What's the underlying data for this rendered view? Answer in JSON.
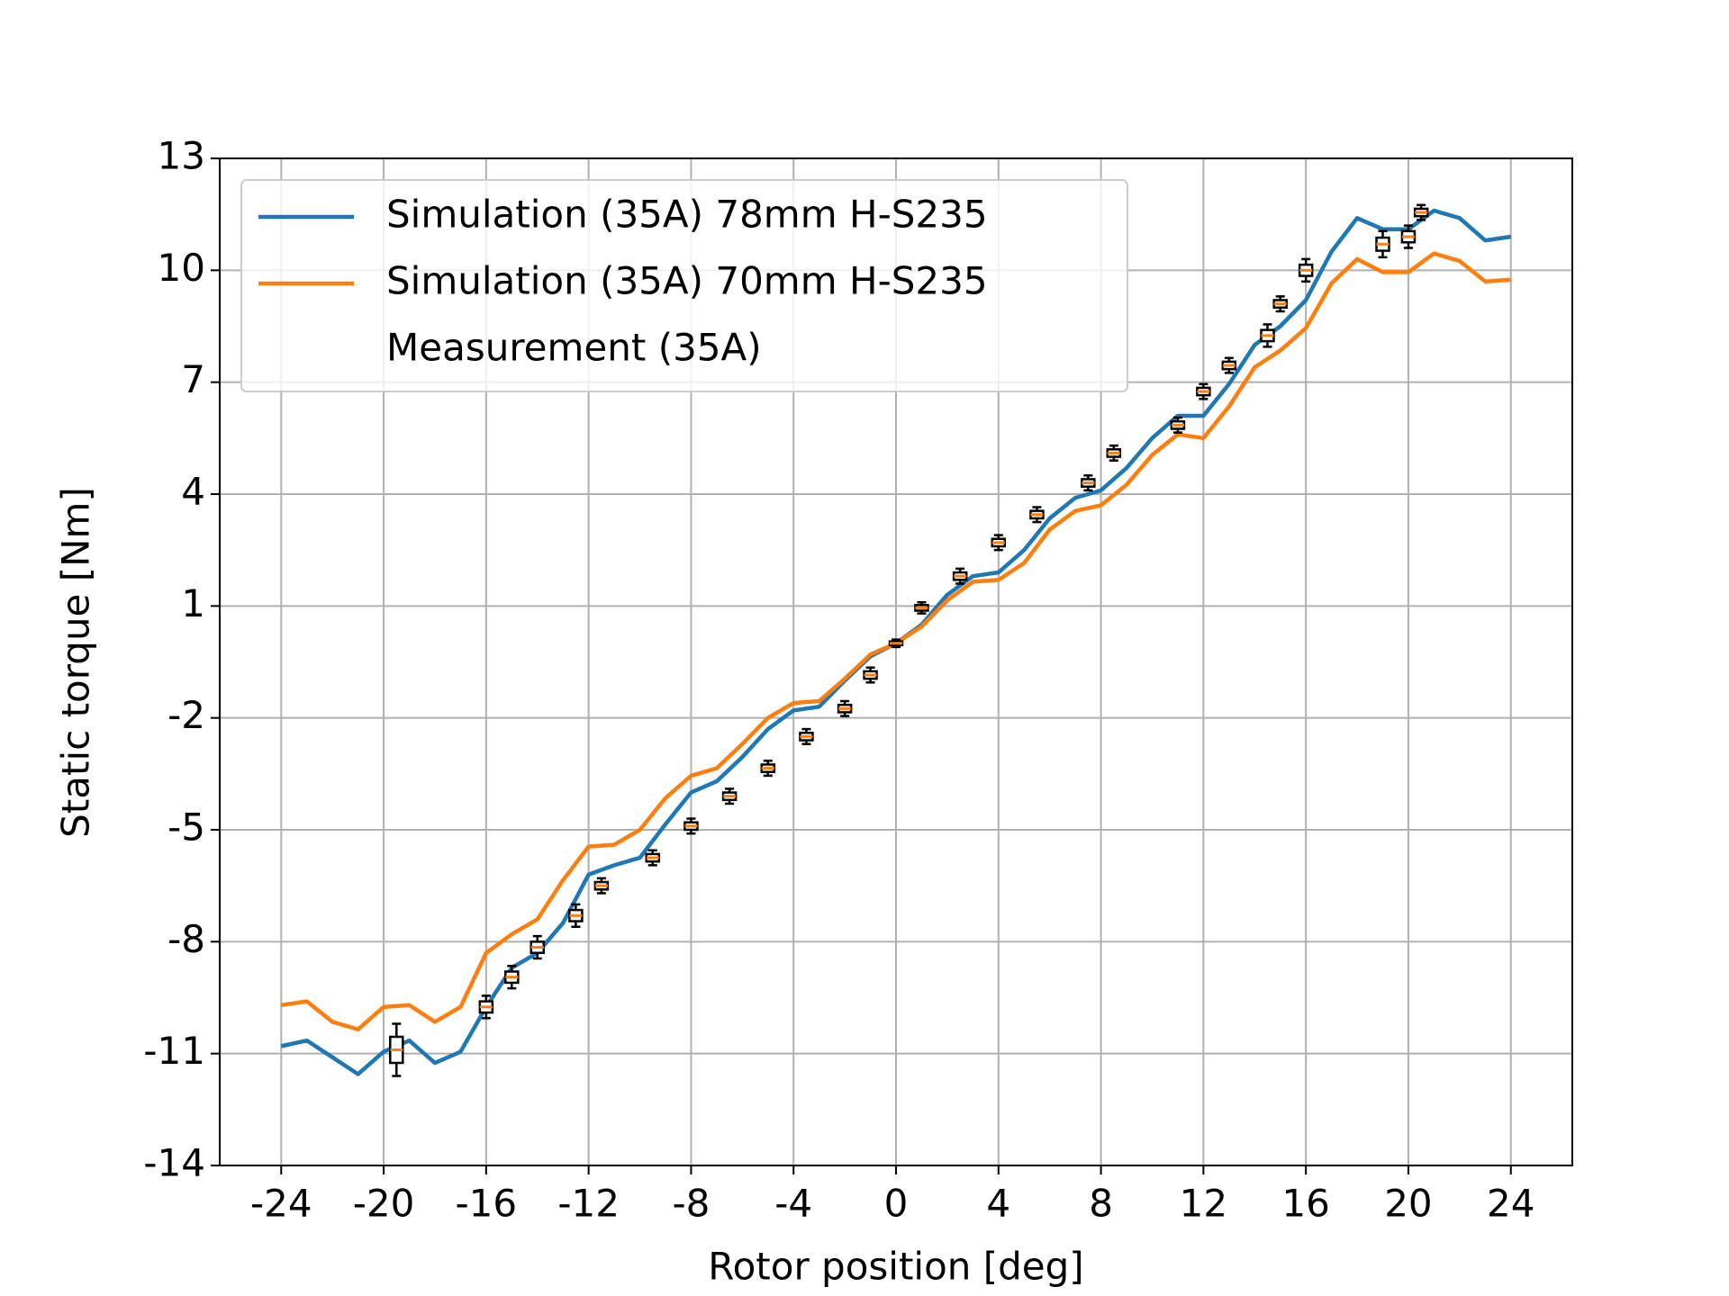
{
  "chart_data": {
    "type": "line",
    "xlabel": "Rotor position [deg]",
    "ylabel": "Static torque [Nm]",
    "xlim": [
      -26.4,
      26.4
    ],
    "xticks": [
      -24,
      -20,
      -16,
      -12,
      -8,
      -4,
      0,
      4,
      8,
      12,
      16,
      20,
      24
    ],
    "ylim": [
      -14,
      13
    ],
    "yticks": [
      -14,
      -11,
      -8,
      -5,
      -2,
      1,
      4,
      7,
      10,
      13
    ],
    "grid": true,
    "legend": "upper left",
    "series": [
      {
        "name": "Simulation (35A) 78mm H-S235",
        "color": "#1f77b4",
        "x": [
          -24,
          -23,
          -22,
          -21,
          -20,
          -19,
          -18,
          -17,
          -16,
          -15,
          -14,
          -13,
          -12,
          -11,
          -10,
          -9,
          -8,
          -7,
          -6,
          -5,
          -4,
          -3,
          -2,
          -1,
          0,
          1,
          2,
          3,
          4,
          5,
          6,
          7,
          8,
          9,
          10,
          11,
          12,
          13,
          14,
          15,
          16,
          17,
          18,
          19,
          20,
          21,
          22,
          23,
          24
        ],
        "values": [
          -10.8,
          -10.65,
          -11.1,
          -11.55,
          -10.95,
          -10.65,
          -11.25,
          -10.95,
          -9.75,
          -8.7,
          -8.3,
          -7.5,
          -6.2,
          -5.95,
          -5.75,
          -4.85,
          -4.0,
          -3.7,
          -3.05,
          -2.3,
          -1.8,
          -1.7,
          -1.0,
          -0.35,
          0,
          0.5,
          1.3,
          1.8,
          1.9,
          2.5,
          3.35,
          3.9,
          4.1,
          4.7,
          5.5,
          6.1,
          6.1,
          6.95,
          8.0,
          8.5,
          9.2,
          10.5,
          11.4,
          11.1,
          11.1,
          11.6,
          11.4,
          10.8,
          10.9
        ]
      },
      {
        "name": "Simulation (35A) 70mm H-S235",
        "color": "#ff7f0e",
        "x": [
          -24,
          -23,
          -22,
          -21,
          -20,
          -19,
          -18,
          -17,
          -16,
          -15,
          -14,
          -13,
          -12,
          -11,
          -10,
          -9,
          -8,
          -7,
          -6,
          -5,
          -4,
          -3,
          -2,
          -1,
          0,
          1,
          2,
          3,
          4,
          5,
          6,
          7,
          8,
          9,
          10,
          11,
          12,
          13,
          14,
          15,
          16,
          17,
          18,
          19,
          20,
          21,
          22,
          23,
          24
        ],
        "values": [
          -9.7,
          -9.6,
          -10.15,
          -10.35,
          -9.75,
          -9.7,
          -10.15,
          -9.75,
          -8.3,
          -7.8,
          -7.4,
          -6.35,
          -5.45,
          -5.4,
          -5.0,
          -4.15,
          -3.55,
          -3.35,
          -2.7,
          -2.0,
          -1.6,
          -1.55,
          -0.95,
          -0.3,
          0,
          0.45,
          1.15,
          1.65,
          1.7,
          2.15,
          3.05,
          3.55,
          3.7,
          4.25,
          5.05,
          5.6,
          5.5,
          6.35,
          7.4,
          7.85,
          8.45,
          9.65,
          10.3,
          9.95,
          9.95,
          10.45,
          10.25,
          9.7,
          9.75
        ]
      },
      {
        "name": "Measurement (35A)",
        "color": "#ff7f0e",
        "marker": "box",
        "x": [
          -19.5,
          -16,
          -15,
          -14,
          -12.5,
          -11.5,
          -9.5,
          -8,
          -6.5,
          -5,
          -3.5,
          -2,
          -1,
          0,
          1,
          2.5,
          4,
          5.5,
          7.5,
          8.5,
          11,
          12,
          13,
          14.5,
          15,
          16,
          19,
          20,
          20.5
        ],
        "values": [
          -10.9,
          -9.75,
          -8.95,
          -8.15,
          -7.3,
          -6.5,
          -5.75,
          -4.9,
          -4.1,
          -3.35,
          -2.5,
          -1.75,
          -0.85,
          0,
          0.95,
          1.8,
          2.7,
          3.45,
          4.3,
          5.1,
          5.85,
          6.75,
          7.45,
          8.25,
          9.1,
          10.0,
          10.7,
          10.9,
          11.55
        ],
        "errors": [
          0.7,
          0.3,
          0.3,
          0.3,
          0.3,
          0.2,
          0.2,
          0.2,
          0.2,
          0.2,
          0.2,
          0.2,
          0.2,
          0.1,
          0.15,
          0.2,
          0.2,
          0.2,
          0.2,
          0.2,
          0.2,
          0.2,
          0.2,
          0.3,
          0.2,
          0.3,
          0.35,
          0.3,
          0.2
        ]
      }
    ]
  }
}
